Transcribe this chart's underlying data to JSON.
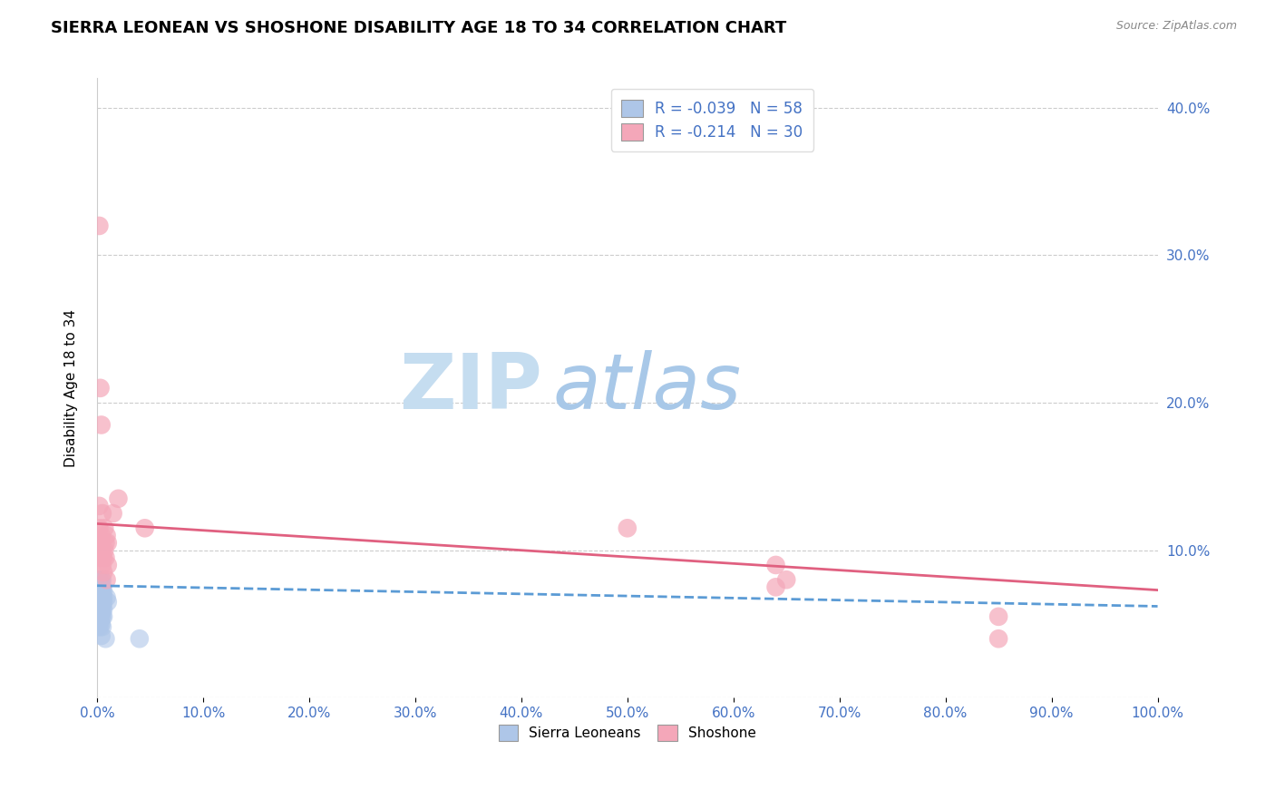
{
  "title": "SIERRA LEONEAN VS SHOSHONE DISABILITY AGE 18 TO 34 CORRELATION CHART",
  "source": "Source: ZipAtlas.com",
  "ylabel": "Disability Age 18 to 34",
  "xlim": [
    0.0,
    1.0
  ],
  "ylim": [
    0.0,
    0.42
  ],
  "xticks": [
    0.0,
    0.1,
    0.2,
    0.3,
    0.4,
    0.5,
    0.6,
    0.7,
    0.8,
    0.9,
    1.0
  ],
  "yticks": [
    0.0,
    0.1,
    0.2,
    0.3,
    0.4
  ],
  "xticklabels": [
    "0.0%",
    "10.0%",
    "20.0%",
    "30.0%",
    "40.0%",
    "50.0%",
    "60.0%",
    "70.0%",
    "80.0%",
    "90.0%",
    "100.0%"
  ],
  "yticklabels": [
    "",
    "10.0%",
    "20.0%",
    "30.0%",
    "40.0%"
  ],
  "sierra_color": "#aec6e8",
  "shoshone_color": "#f4a7b9",
  "sierra_line_color": "#5b9bd5",
  "shoshone_line_color": "#e06080",
  "sierra_R": -0.039,
  "sierra_N": 58,
  "shoshone_R": -0.214,
  "shoshone_N": 30,
  "legend_labels": [
    "Sierra Leoneans",
    "Shoshone"
  ],
  "background_color": "#ffffff",
  "grid_color": "#cccccc",
  "watermark_zip": "ZIP",
  "watermark_atlas": "atlas",
  "title_fontsize": 13,
  "axis_label_fontsize": 11,
  "tick_fontsize": 11,
  "sierra_x": [
    0.001,
    0.001,
    0.001,
    0.001,
    0.001,
    0.001,
    0.001,
    0.001,
    0.001,
    0.001,
    0.002,
    0.002,
    0.002,
    0.002,
    0.002,
    0.002,
    0.002,
    0.002,
    0.002,
    0.002,
    0.003,
    0.003,
    0.003,
    0.003,
    0.003,
    0.003,
    0.003,
    0.003,
    0.003,
    0.003,
    0.004,
    0.004,
    0.004,
    0.004,
    0.004,
    0.004,
    0.004,
    0.004,
    0.004,
    0.004,
    0.005,
    0.005,
    0.005,
    0.005,
    0.005,
    0.005,
    0.005,
    0.005,
    0.005,
    0.006,
    0.006,
    0.006,
    0.006,
    0.006,
    0.008,
    0.009,
    0.01,
    0.04
  ],
  "sierra_y": [
    0.075,
    0.068,
    0.072,
    0.065,
    0.08,
    0.058,
    0.062,
    0.07,
    0.055,
    0.048,
    0.078,
    0.072,
    0.068,
    0.075,
    0.065,
    0.06,
    0.08,
    0.055,
    0.07,
    0.05,
    0.073,
    0.067,
    0.075,
    0.063,
    0.07,
    0.06,
    0.055,
    0.08,
    0.065,
    0.048,
    0.072,
    0.068,
    0.075,
    0.065,
    0.06,
    0.08,
    0.055,
    0.07,
    0.05,
    0.042,
    0.073,
    0.067,
    0.075,
    0.063,
    0.07,
    0.06,
    0.055,
    0.08,
    0.048,
    0.072,
    0.068,
    0.065,
    0.06,
    0.055,
    0.04,
    0.068,
    0.065,
    0.04
  ],
  "shoshone_x": [
    0.002,
    0.002,
    0.003,
    0.003,
    0.004,
    0.004,
    0.005,
    0.005,
    0.006,
    0.006,
    0.007,
    0.007,
    0.008,
    0.008,
    0.009,
    0.009,
    0.01,
    0.01,
    0.015,
    0.02,
    0.045,
    0.5,
    0.64,
    0.64,
    0.65,
    0.85,
    0.85,
    0.002,
    0.003,
    0.004
  ],
  "shoshone_y": [
    0.115,
    0.13,
    0.105,
    0.095,
    0.11,
    0.1,
    0.125,
    0.09,
    0.095,
    0.085,
    0.1,
    0.115,
    0.105,
    0.095,
    0.11,
    0.08,
    0.09,
    0.105,
    0.125,
    0.135,
    0.115,
    0.115,
    0.09,
    0.075,
    0.08,
    0.04,
    0.055,
    0.32,
    0.21,
    0.185
  ]
}
